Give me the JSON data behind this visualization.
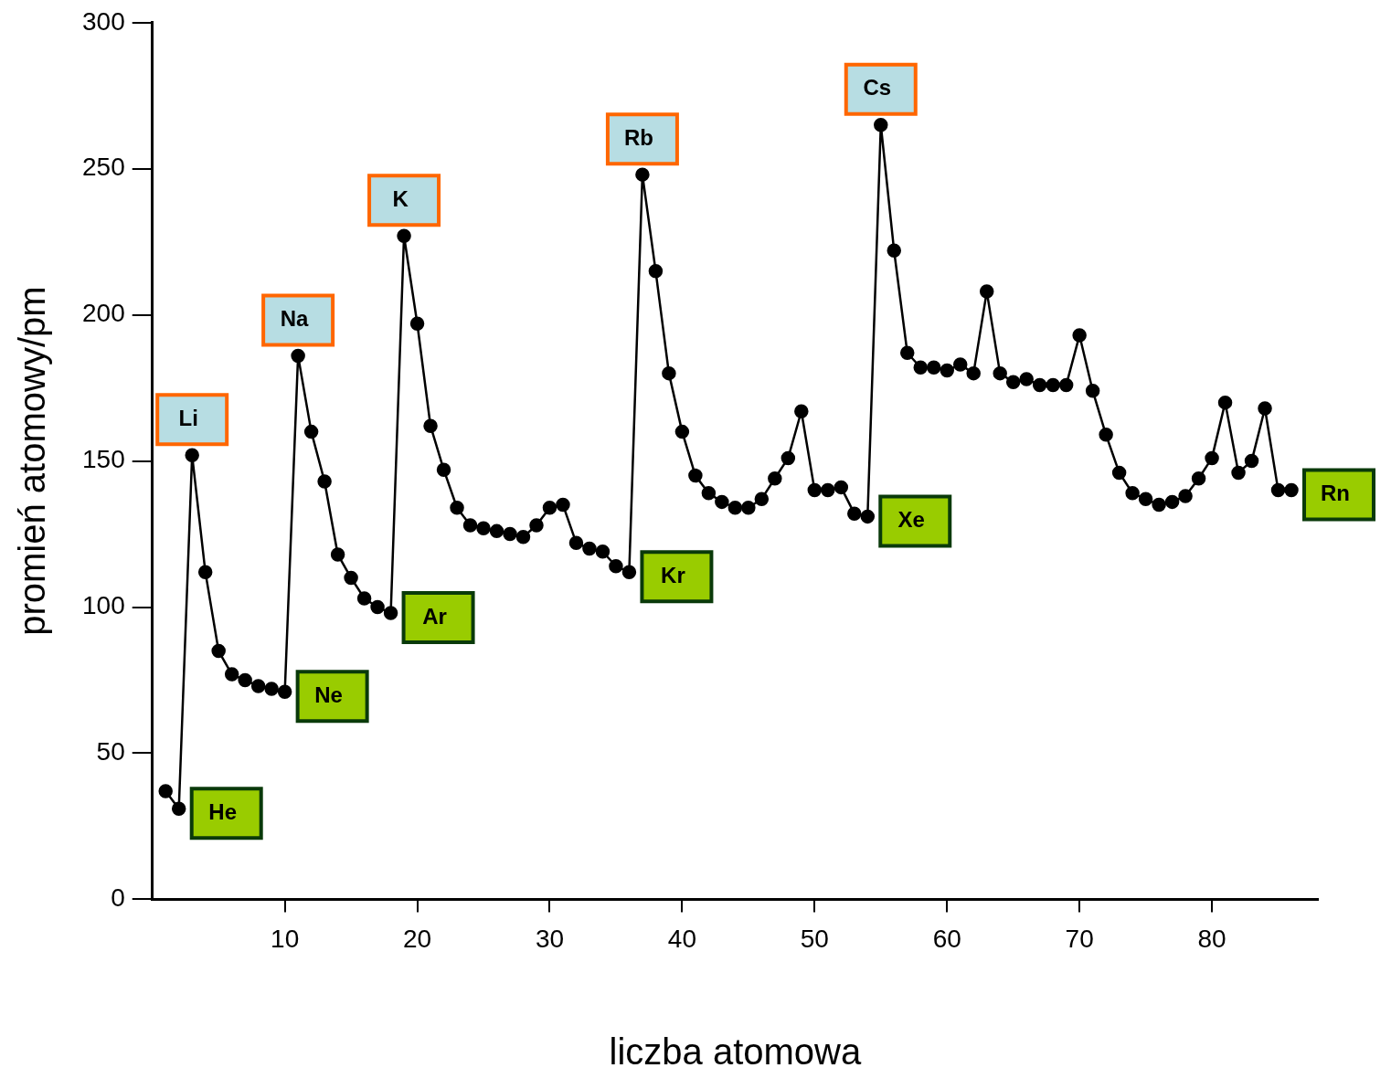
{
  "chart_data": {
    "type": "line",
    "xlabel": "liczba atomowa",
    "ylabel": "promień atomowy/pm",
    "x": [
      1,
      2,
      3,
      4,
      5,
      6,
      7,
      8,
      9,
      10,
      11,
      12,
      13,
      14,
      15,
      16,
      17,
      18,
      19,
      20,
      21,
      22,
      23,
      24,
      25,
      26,
      27,
      28,
      29,
      30,
      31,
      32,
      33,
      34,
      35,
      36,
      37,
      38,
      39,
      40,
      41,
      42,
      43,
      44,
      45,
      46,
      47,
      48,
      49,
      50,
      51,
      52,
      53,
      54,
      55,
      56,
      57,
      58,
      59,
      60,
      61,
      62,
      63,
      64,
      65,
      66,
      67,
      68,
      69,
      70,
      71,
      72,
      73,
      74,
      75,
      76,
      77,
      78,
      79,
      80,
      81,
      82,
      83,
      84,
      85,
      86
    ],
    "values": [
      37,
      31,
      152,
      112,
      85,
      77,
      75,
      73,
      72,
      71,
      186,
      160,
      143,
      118,
      110,
      103,
      100,
      98,
      227,
      197,
      162,
      147,
      134,
      128,
      127,
      126,
      125,
      124,
      128,
      134,
      135,
      122,
      120,
      119,
      114,
      112,
      248,
      215,
      180,
      160,
      145,
      139,
      136,
      134,
      134,
      137,
      144,
      151,
      167,
      140,
      140,
      141,
      132,
      131,
      265,
      222,
      187,
      182,
      182,
      181,
      183,
      180,
      208,
      180,
      177,
      178,
      176,
      176,
      176,
      193,
      174,
      159,
      146,
      139,
      137,
      135,
      136,
      138,
      144,
      151,
      170,
      146,
      150,
      168,
      140,
      140
    ],
    "color": "#000000",
    "marker": "circle",
    "xlim": [
      0,
      88
    ],
    "xticks": [
      10,
      20,
      30,
      40,
      50,
      60,
      70,
      80
    ],
    "ylim": [
      0,
      300
    ],
    "yticks": [
      0,
      50,
      100,
      150,
      200,
      250,
      300
    ],
    "annotations": [
      {
        "text": "He",
        "x": 2,
        "y": 31
      },
      {
        "text": "Li",
        "x": 3,
        "y": 152
      },
      {
        "text": "Ne",
        "x": 10,
        "y": 71
      },
      {
        "text": "Na",
        "x": 11,
        "y": 186
      },
      {
        "text": "Ar",
        "x": 18,
        "y": 98
      },
      {
        "text": "K",
        "x": 19,
        "y": 227
      },
      {
        "text": "Kr",
        "x": 36,
        "y": 112
      },
      {
        "text": "Rb",
        "x": 37,
        "y": 248
      },
      {
        "text": "Xe",
        "x": 54,
        "y": 131
      },
      {
        "text": "Cs",
        "x": 55,
        "y": 265
      },
      {
        "text": "Rn",
        "x": 86,
        "y": 140
      }
    ]
  }
}
